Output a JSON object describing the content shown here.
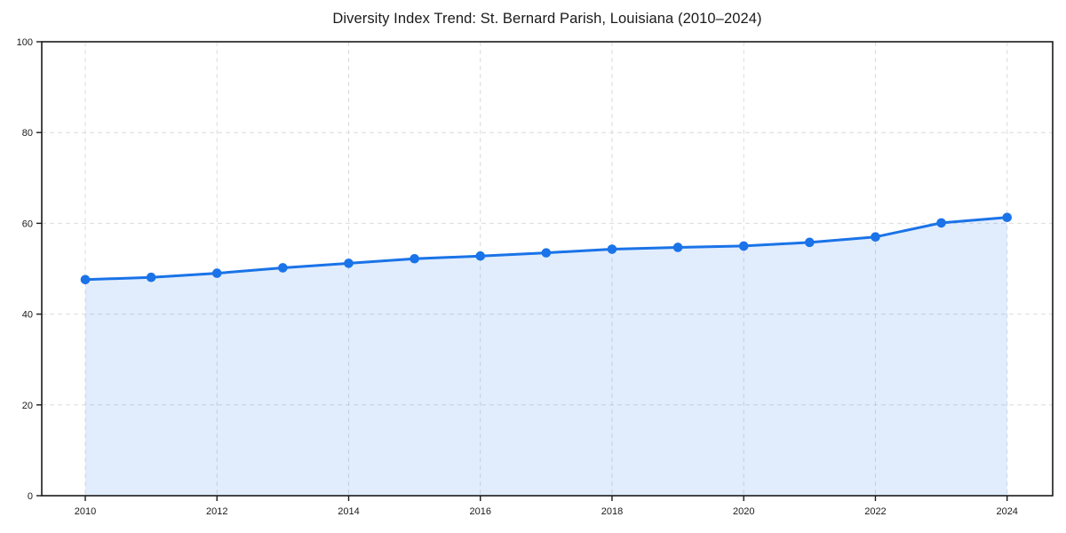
{
  "chart_data": {
    "type": "area",
    "title": "Diversity Index Trend: St. Bernard Parish, Louisiana (2010–2024)",
    "xlabel": "",
    "ylabel": "",
    "x": [
      2010,
      2011,
      2012,
      2013,
      2014,
      2015,
      2016,
      2017,
      2018,
      2019,
      2020,
      2021,
      2022,
      2023,
      2024
    ],
    "series": [
      {
        "name": "Diversity Index",
        "values": [
          47.6,
          48.1,
          49.0,
          50.2,
          51.2,
          52.2,
          52.8,
          53.5,
          54.3,
          54.7,
          55.0,
          55.8,
          57.0,
          60.1,
          61.3
        ]
      }
    ],
    "ylim": [
      0,
      100
    ],
    "yticks": [
      0,
      20,
      40,
      60,
      80,
      100
    ],
    "xticks": [
      2010,
      2012,
      2014,
      2016,
      2018,
      2020,
      2022,
      2024
    ],
    "grid": true,
    "grid_style": "dashed",
    "legend": "none",
    "marker": "circle",
    "colors": {
      "line": "#1a73e8",
      "fill": "#1a73e8",
      "fill_opacity": 0.13,
      "grid": "#dcdcdc",
      "spine": "#1a1a1a",
      "tick_text": "#1a1a1a",
      "background": "#ffffff"
    }
  }
}
